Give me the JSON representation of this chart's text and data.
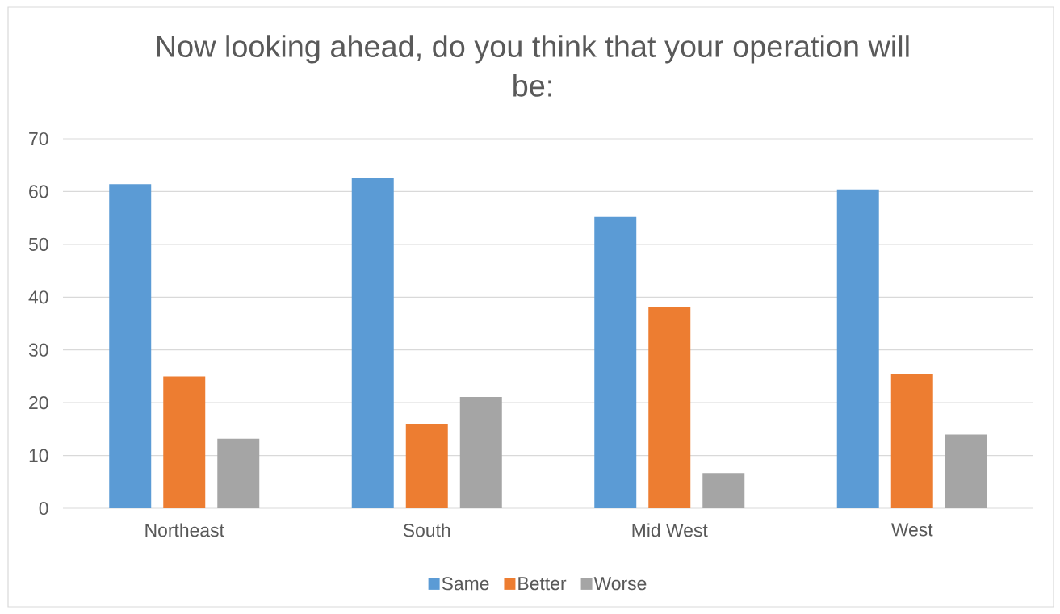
{
  "chart_data": {
    "type": "bar",
    "title": "Now looking ahead, do you think that your operation will be:",
    "categories": [
      "Northeast",
      "South",
      "Mid West",
      "West"
    ],
    "series": [
      {
        "name": "Same",
        "color": "#5b9bd5",
        "values": [
          61.4,
          62.5,
          55.2,
          60.4
        ]
      },
      {
        "name": "Better",
        "color": "#ed7d31",
        "values": [
          25,
          15.9,
          38.2,
          25.4
        ]
      },
      {
        "name": "Worse",
        "color": "#a5a5a5",
        "values": [
          13.2,
          21.1,
          6.7,
          14
        ]
      }
    ],
    "ylim": [
      0,
      70
    ],
    "yticks": [
      0,
      10,
      20,
      30,
      40,
      50,
      60,
      70
    ],
    "grid": "y",
    "legend": "bottom"
  }
}
